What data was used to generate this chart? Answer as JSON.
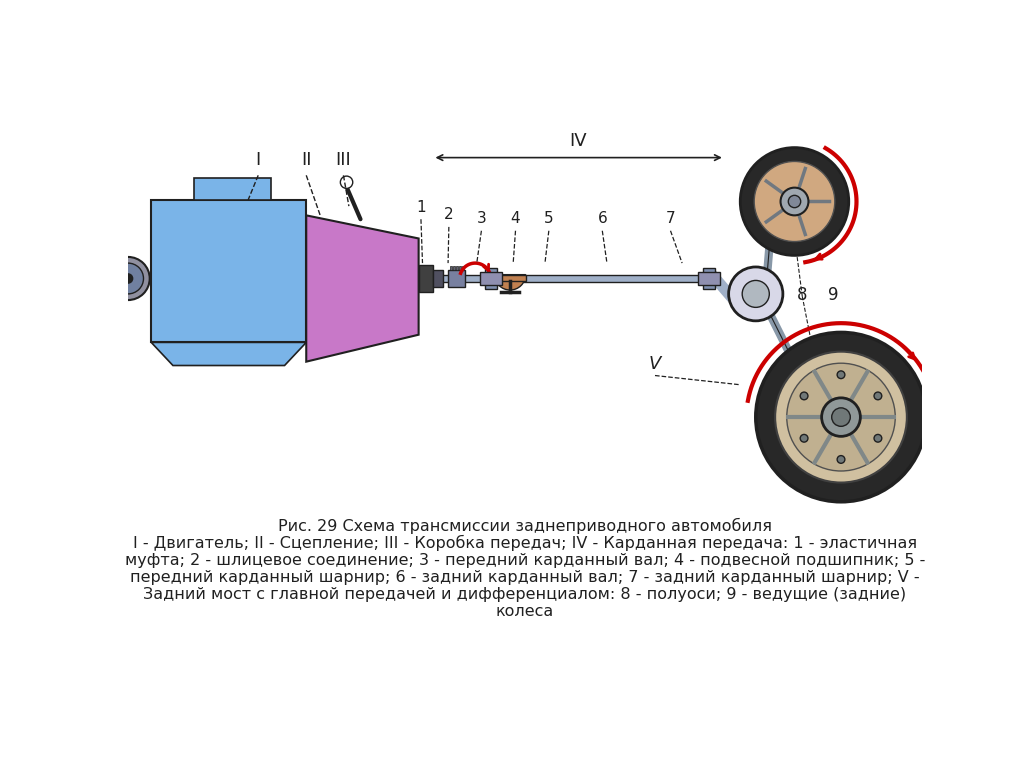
{
  "bg_color": "#ffffff",
  "title_line1": "Рис. 29 Схема трансмиссии заднеприводного автомобиля",
  "title_line2": "I - Двигатель; II - Сцепление; III - Коробка передач; IV - Карданная передача: 1 - эластичная",
  "title_line3": "муфта; 2 - шлицевое соединение; 3 - передний карданный вал; 4 - подвесной подшипник; 5 -",
  "title_line4": "передний карданный шарнир; 6 - задний карданный вал; 7 - задний карданный шарнир; V -",
  "title_line5": "Задний мост с главной передачей и дифференциалом: 8 - полуоси; 9 - ведущие (задние)",
  "title_line6": "колеса",
  "engine_color": "#7ab4e8",
  "clutch_color": "#c878c8",
  "shaft_color": "#a0b0c8",
  "red_arrow": "#cc0000",
  "dark_color": "#202020",
  "wheel_dark": "#282828",
  "wheel_mid": "#c09070",
  "wheel_hub": "#d0a880",
  "diff_color": "#d8d8e8",
  "diff_inner": "#b0b8c0",
  "axle_color": "#8898a8"
}
